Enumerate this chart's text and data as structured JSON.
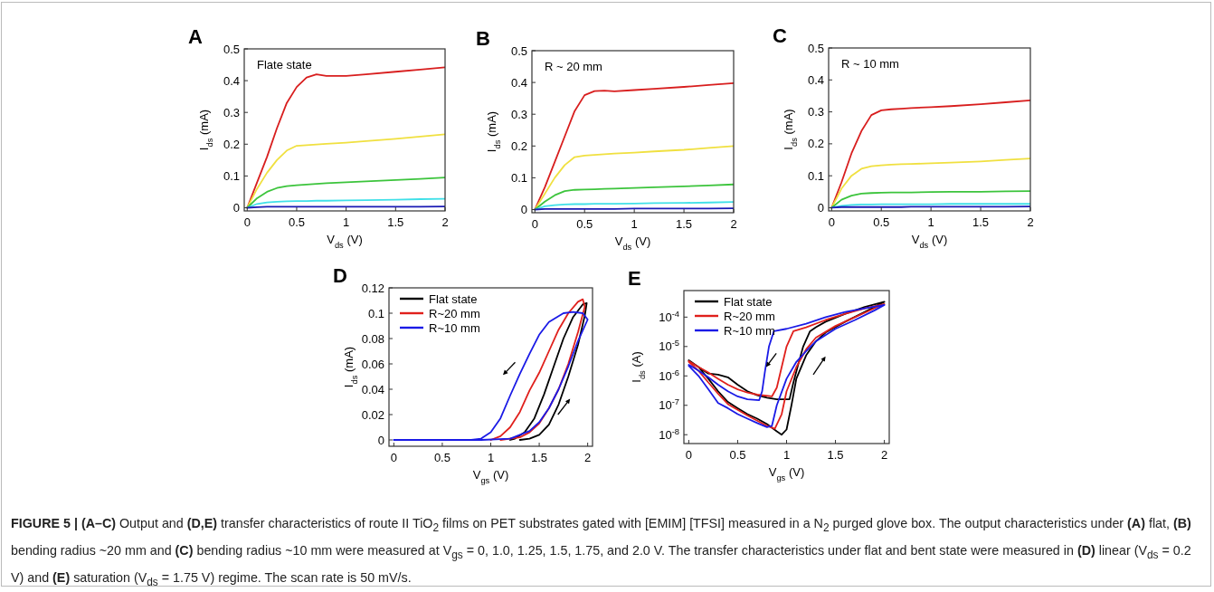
{
  "chart_data": [
    {
      "type": "line",
      "title": "A",
      "annotations": [
        "Flate state"
      ],
      "xlabel": "V$_{ds}$ (V)",
      "ylabel": "I$_{ds}$ (mA)",
      "xlim": [
        -0.03,
        2
      ],
      "ylim": [
        -0.01,
        0.5
      ],
      "xticks": [
        0,
        0.5,
        1,
        1.5,
        2
      ],
      "yticks": [
        0,
        0.1,
        0.2,
        0.3,
        0.4,
        0.5
      ],
      "x": [
        0,
        0.1,
        0.2,
        0.3,
        0.4,
        0.5,
        0.6,
        0.7,
        0.8,
        1.0,
        1.2,
        1.5,
        1.75,
        2.0
      ],
      "series": [
        {
          "color": "#d81e1e",
          "values": [
            0,
            0.08,
            0.16,
            0.25,
            0.33,
            0.38,
            0.41,
            0.42,
            0.415,
            0.415,
            0.42,
            0.428,
            0.435,
            0.442
          ]
        },
        {
          "color": "#f0e040",
          "values": [
            0,
            0.06,
            0.11,
            0.15,
            0.18,
            0.195,
            0.197,
            0.199,
            0.201,
            0.205,
            0.21,
            0.217,
            0.224,
            0.231
          ]
        },
        {
          "color": "#3cc43c",
          "values": [
            0,
            0.03,
            0.05,
            0.062,
            0.068,
            0.071,
            0.073,
            0.075,
            0.077,
            0.08,
            0.083,
            0.087,
            0.091,
            0.095
          ]
        },
        {
          "color": "#40e0e8",
          "values": [
            0,
            0.012,
            0.017,
            0.019,
            0.02,
            0.021,
            0.021,
            0.022,
            0.022,
            0.023,
            0.024,
            0.025,
            0.027,
            0.028
          ]
        },
        {
          "color": "#1a1ab4",
          "values": [
            0,
            0.002,
            0.003,
            0.003,
            0.003,
            0.003,
            0.003,
            0.003,
            0.003,
            0.003,
            0.003,
            0.003,
            0.003,
            0.004
          ]
        }
      ]
    },
    {
      "type": "line",
      "title": "B",
      "annotations": [
        "R ~ 20 mm"
      ],
      "xlabel": "V$_{ds}$ (V)",
      "ylabel": "I$_{ds}$ (mA)",
      "xlim": [
        -0.03,
        2
      ],
      "ylim": [
        -0.01,
        0.5
      ],
      "xticks": [
        0,
        0.5,
        1,
        1.5,
        2
      ],
      "yticks": [
        0,
        0.1,
        0.2,
        0.3,
        0.4,
        0.5
      ],
      "x": [
        0,
        0.1,
        0.2,
        0.3,
        0.4,
        0.5,
        0.6,
        0.7,
        0.8,
        1.0,
        1.2,
        1.5,
        1.75,
        2.0
      ],
      "series": [
        {
          "color": "#d81e1e",
          "values": [
            0,
            0.07,
            0.15,
            0.23,
            0.31,
            0.36,
            0.373,
            0.374,
            0.372,
            0.376,
            0.38,
            0.386,
            0.392,
            0.398
          ]
        },
        {
          "color": "#f0e040",
          "values": [
            0,
            0.05,
            0.1,
            0.14,
            0.165,
            0.17,
            0.172,
            0.174,
            0.176,
            0.179,
            0.183,
            0.188,
            0.194,
            0.2
          ]
        },
        {
          "color": "#3cc43c",
          "values": [
            0,
            0.025,
            0.045,
            0.058,
            0.062,
            0.063,
            0.064,
            0.065,
            0.066,
            0.068,
            0.07,
            0.073,
            0.076,
            0.079
          ]
        },
        {
          "color": "#40e0e8",
          "values": [
            0,
            0.01,
            0.014,
            0.016,
            0.017,
            0.017,
            0.018,
            0.018,
            0.018,
            0.019,
            0.02,
            0.021,
            0.022,
            0.024
          ]
        },
        {
          "color": "#1a1ab4",
          "values": [
            0,
            0.002,
            0.002,
            0.002,
            0.002,
            0.002,
            0.002,
            0.002,
            0.002,
            0.003,
            0.003,
            0.003,
            0.003,
            0.004
          ]
        }
      ]
    },
    {
      "type": "line",
      "title": "C",
      "annotations": [
        "R ~ 10 mm"
      ],
      "xlabel": "V$_{ds}$ (V)",
      "ylabel": "I$_{ds}$ (mA)",
      "xlim": [
        -0.03,
        2
      ],
      "ylim": [
        -0.01,
        0.5
      ],
      "xticks": [
        0,
        0.5,
        1,
        1.5,
        2
      ],
      "yticks": [
        0,
        0.1,
        0.2,
        0.3,
        0.4,
        0.5
      ],
      "x": [
        0,
        0.1,
        0.2,
        0.3,
        0.4,
        0.5,
        0.6,
        0.7,
        0.8,
        1.0,
        1.2,
        1.5,
        1.75,
        2.0
      ],
      "series": [
        {
          "color": "#d81e1e",
          "values": [
            0,
            0.08,
            0.17,
            0.24,
            0.29,
            0.305,
            0.308,
            0.31,
            0.312,
            0.315,
            0.318,
            0.324,
            0.33,
            0.336
          ]
        },
        {
          "color": "#f0e040",
          "values": [
            0,
            0.06,
            0.1,
            0.122,
            0.13,
            0.133,
            0.135,
            0.136,
            0.137,
            0.139,
            0.141,
            0.145,
            0.15,
            0.154
          ]
        },
        {
          "color": "#3cc43c",
          "values": [
            0,
            0.025,
            0.038,
            0.044,
            0.046,
            0.047,
            0.048,
            0.048,
            0.048,
            0.049,
            0.05,
            0.05,
            0.051,
            0.052
          ]
        },
        {
          "color": "#40e0e8",
          "values": [
            0,
            0.006,
            0.009,
            0.01,
            0.01,
            0.011,
            0.011,
            0.011,
            0.011,
            0.011,
            0.012,
            0.012,
            0.012,
            0.012
          ]
        },
        {
          "color": "#1a1ab4",
          "values": [
            0,
            0.002,
            0.002,
            0.002,
            0.002,
            0.002,
            0.002,
            0.002,
            0.003,
            0.003,
            0.003,
            0.003,
            0.003,
            0.004
          ]
        }
      ]
    },
    {
      "type": "line",
      "title": "D",
      "xlabel": "V$_{gs}$ (V)",
      "ylabel": "I$_{ds}$ (mA)",
      "xlim": [
        -0.05,
        2.05
      ],
      "ylim": [
        -0.005,
        0.12
      ],
      "xticks": [
        0,
        0.5,
        1,
        1.5,
        2
      ],
      "yticks": [
        0,
        0.02,
        0.04,
        0.06,
        0.08,
        0.1,
        0.12
      ],
      "legend": "top left",
      "series": [
        {
          "name": "Flat state",
          "color": "#000000",
          "x": [
            1.3,
            1.4,
            1.5,
            1.6,
            1.7,
            1.8,
            1.9,
            1.97,
            1.99,
            1.95,
            1.85,
            1.75,
            1.65,
            1.55,
            1.45,
            1.35,
            1.25,
            1.2
          ],
          "values": [
            0,
            0.001,
            0.004,
            0.012,
            0.028,
            0.05,
            0.075,
            0.098,
            0.108,
            0.107,
            0.097,
            0.08,
            0.058,
            0.036,
            0.017,
            0.006,
            0.001,
            0
          ]
        },
        {
          "name": "R~20 mm",
          "color": "#e0201c",
          "x": [
            1.1,
            1.3,
            1.4,
            1.5,
            1.6,
            1.7,
            1.8,
            1.9,
            1.97,
            1.95,
            1.9,
            1.8,
            1.7,
            1.6,
            1.5,
            1.4,
            1.3,
            1.2,
            1.1,
            1.0
          ],
          "values": [
            0,
            0.002,
            0.006,
            0.013,
            0.025,
            0.04,
            0.06,
            0.085,
            0.105,
            0.111,
            0.109,
            0.1,
            0.087,
            0.07,
            0.053,
            0.039,
            0.022,
            0.01,
            0.003,
            0
          ]
        },
        {
          "name": "R~10 mm",
          "color": "#1a1ae6",
          "x": [
            0,
            0.9,
            1.2,
            1.4,
            1.5,
            1.6,
            1.7,
            1.8,
            1.9,
            2.0,
            1.95,
            1.85,
            1.75,
            1.6,
            1.5,
            1.4,
            1.3,
            1.2,
            1.1,
            1.0,
            0.9,
            0.8
          ],
          "values": [
            0,
            0,
            0.001,
            0.007,
            0.014,
            0.025,
            0.04,
            0.058,
            0.078,
            0.095,
            0.1,
            0.101,
            0.1,
            0.093,
            0.083,
            0.068,
            0.052,
            0.035,
            0.017,
            0.006,
            0.001,
            0
          ]
        }
      ]
    },
    {
      "type": "line",
      "title": "E",
      "xlabel": "V$_{gs}$ (V)",
      "ylabel": "I$_{ds}$ (A)",
      "log": true,
      "xlim": [
        -0.05,
        2.05
      ],
      "ylim": [
        5e-09,
        0.0008
      ],
      "xticks": [
        0,
        0.5,
        1,
        1.5,
        2
      ],
      "yticks": [
        {
          "value": 1e-08,
          "label": "10$^{-8}$"
        },
        {
          "value": 1e-07,
          "label": "10$^{-7}$"
        },
        {
          "value": 1e-06,
          "label": "10$^{-6}$"
        },
        {
          "value": 1e-05,
          "label": "10$^{-5}$"
        },
        {
          "value": 0.0001,
          "label": "10$^{-4}$"
        }
      ],
      "legend": "top left",
      "series": [
        {
          "name": "Flat state",
          "color": "#000000",
          "x": [
            0,
            0.1,
            0.2,
            0.3,
            0.4,
            0.5,
            0.6,
            0.7,
            0.8,
            0.9,
            0.95,
            1.0,
            1.05,
            1.1,
            1.2,
            1.3,
            1.4,
            1.6,
            1.8,
            2.0,
            1.8,
            1.6,
            1.4,
            1.3,
            1.24,
            1.17,
            1.12,
            1.07,
            1.03,
            0.9,
            0.8,
            0.7,
            0.6,
            0.5,
            0.4,
            0.3,
            0.2,
            0.1,
            0
          ],
          "values": [
            3.3e-06,
            2e-06,
            8e-07,
            3e-07,
            1.3e-07,
            8e-08,
            5e-08,
            3.5e-08,
            2.3e-08,
            1.3e-08,
            1e-08,
            1.5e-08,
            1e-07,
            8e-07,
            5e-06,
            1.5e-05,
            3e-05,
            7e-05,
            0.00015,
            0.00033,
            0.00022,
            0.00013,
            7e-05,
            4.5e-05,
            3.3e-05,
            1e-05,
            2.5e-06,
            6e-07,
            1.6e-07,
            1.6e-07,
            1.8e-07,
            2.2e-07,
            3e-07,
            5e-07,
            9e-07,
            1.1e-06,
            1.2e-06,
            2e-06,
            3.4e-06
          ]
        },
        {
          "name": "R~20 mm",
          "color": "#e0201c",
          "x": [
            0,
            0.1,
            0.2,
            0.3,
            0.4,
            0.5,
            0.6,
            0.7,
            0.8,
            0.88,
            0.95,
            1.0,
            1.1,
            1.2,
            1.3,
            1.5,
            1.7,
            1.9,
            2.0,
            1.8,
            1.6,
            1.4,
            1.2,
            1.07,
            1.0,
            0.95,
            0.9,
            0.85,
            0.7,
            0.6,
            0.5,
            0.4,
            0.3,
            0.2,
            0.1,
            0
          ],
          "values": [
            3e-06,
            1.5e-06,
            6e-07,
            2.5e-07,
            1.1e-07,
            7e-08,
            4.5e-08,
            3e-08,
            2e-08,
            1.6e-08,
            5e-08,
            3e-07,
            2e-06,
            8e-06,
            2e-05,
            5e-05,
            0.0001,
            0.0002,
            0.00028,
            0.0002,
            0.00013,
            8e-05,
            4.5e-05,
            3.3e-05,
            1e-05,
            2e-06,
            4e-07,
            2e-07,
            2.3e-07,
            2.7e-07,
            3.5e-07,
            5e-07,
            8e-07,
            1.3e-06,
            2e-06,
            3.2e-06
          ]
        },
        {
          "name": "R~10 mm",
          "color": "#1a1ae6",
          "x": [
            0,
            0.1,
            0.2,
            0.3,
            0.4,
            0.5,
            0.6,
            0.7,
            0.8,
            0.85,
            0.9,
            1.0,
            1.1,
            1.2,
            1.3,
            1.5,
            1.7,
            1.9,
            2.0,
            1.8,
            1.6,
            1.4,
            1.2,
            1.0,
            0.87,
            0.82,
            0.78,
            0.75,
            0.72,
            0.6,
            0.5,
            0.4,
            0.3,
            0.2,
            0.1,
            0
          ],
          "values": [
            2.2e-06,
            1e-06,
            3.5e-07,
            1.2e-07,
            8e-08,
            5e-08,
            3.5e-08,
            2.5e-08,
            1.8e-08,
            2e-08,
            1e-07,
            8e-07,
            3e-06,
            7e-06,
            1.5e-05,
            4e-05,
            8e-05,
            0.00017,
            0.00026,
            0.0002,
            0.00015,
            0.0001,
            6e-05,
            4e-05,
            3.3e-05,
            1e-05,
            1.5e-06,
            3e-07,
            1.5e-07,
            1.6e-07,
            2e-07,
            3e-07,
            5e-07,
            9e-07,
            1.5e-06,
            2.4e-06
          ]
        }
      ]
    },
    {
      "type": "other",
      "annotations": [
        "FIGURE 5 | (A–C) Output and (D,E) transfer characteristics of route II TiO$_{2}$ films on PET substrates gated with [EMIM] [TFSI] measured in a N$_{2}$ purged glove box. The output characteristics under (A) flat, (B) bending radius ~20 mm and (C) bending radius ~10 mm were measured at V$_{gs}$ = 0, 1.0, 1.25, 1.5, 1.75, and 2.0 V. The transfer characteristics under flat and bent state were measured in (D) linear (V$_{ds}$ = 0.2 V) and (E) saturation (V$_{ds}$ = 1.75 V) regime. The scan rate is 50 mV/s."
      ]
    }
  ]
}
